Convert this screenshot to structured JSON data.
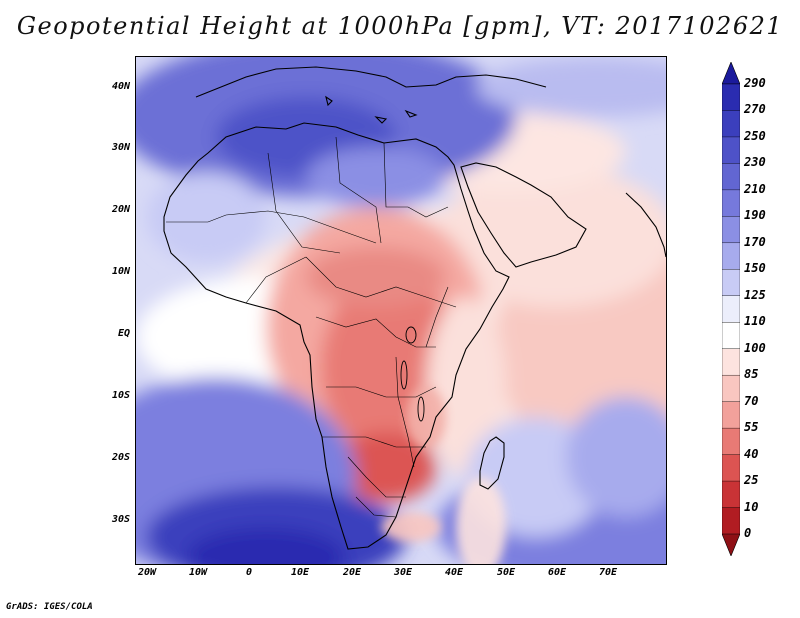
{
  "title": "Geopotential Height at 1000hPa [gpm], VT: 2017102621",
  "credit": "GrADS: IGES/COLA",
  "map": {
    "projection": "latlon",
    "region": "Africa and Arabian Sea",
    "lon_range": [
      "23W",
      "80E"
    ],
    "lat_range": [
      "36S",
      "45N"
    ],
    "lat_labels": [
      "40N",
      "30N",
      "20N",
      "10N",
      "EQ",
      "10S",
      "20S",
      "30S"
    ],
    "lon_labels": [
      "20W",
      "10W",
      "0",
      "10E",
      "20E",
      "30E",
      "40E",
      "50E",
      "60E",
      "70E"
    ],
    "coastlines": true,
    "country_borders": true
  },
  "colorbar": {
    "levels": [
      "290",
      "270",
      "250",
      "230",
      "210",
      "190",
      "170",
      "150",
      "125",
      "110",
      "100",
      "85",
      "70",
      "55",
      "40",
      "25",
      "10",
      "0"
    ],
    "colors": [
      "#1b1a9c",
      "#2a2cb0",
      "#3b3fbd",
      "#4e52c8",
      "#6266d2",
      "#7679dc",
      "#8b8fe4",
      "#a7abed",
      "#c8cbf5",
      "#eceefb",
      "#ffffff",
      "#fde3df",
      "#f9c6c0",
      "#f2a19b",
      "#e87a75",
      "#dc5452",
      "#c93336",
      "#b11c22",
      "#8e1015"
    ],
    "extend": "both"
  },
  "colors": {
    "low": "#b11c22",
    "mid": "#ffffff",
    "high": "#1b1a9c"
  }
}
